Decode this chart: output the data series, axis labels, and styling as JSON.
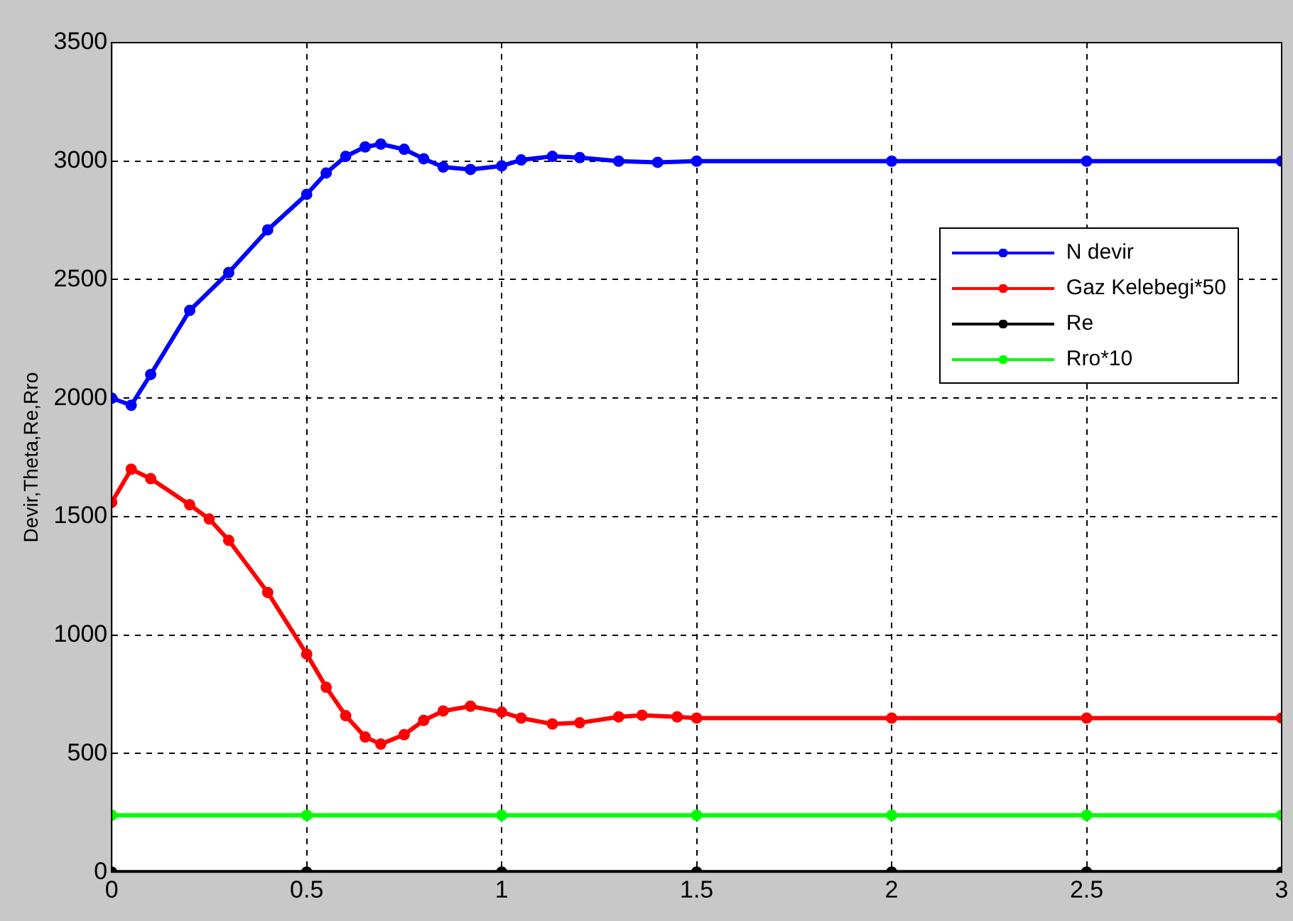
{
  "chart_data": {
    "type": "line",
    "ylabel": "Devir,Theta,Re,Rro",
    "xlim": [
      0,
      3
    ],
    "xticks": [
      0,
      0.5,
      1,
      1.5,
      2,
      2.5,
      3
    ],
    "ylim": [
      0,
      3500
    ],
    "yticks": [
      0,
      500,
      1000,
      1500,
      2000,
      2500,
      3000,
      3500
    ],
    "grid": true,
    "legend": "top right",
    "marker": "circle",
    "line_style": "solid",
    "series": [
      {
        "name": "N devir",
        "color": "#0000ff",
        "x": [
          0,
          0.05,
          0.1,
          0.2,
          0.3,
          0.4,
          0.5,
          0.55,
          0.6,
          0.65,
          0.69,
          0.75,
          0.8,
          0.85,
          0.92,
          1.0,
          1.05,
          1.13,
          1.2,
          1.3,
          1.4,
          1.5,
          2,
          2.5,
          3
        ],
        "values": [
          2000,
          1970,
          2100,
          2370,
          2530,
          2710,
          2860,
          2950,
          3020,
          3060,
          3072,
          3050,
          3010,
          2975,
          2965,
          2980,
          3005,
          3020,
          3015,
          3000,
          2995,
          3000,
          3000,
          3000,
          3000
        ]
      },
      {
        "name": "Gaz Kelebegi*50",
        "color": "#ff0000",
        "x": [
          0,
          0.05,
          0.1,
          0.2,
          0.25,
          0.3,
          0.4,
          0.5,
          0.55,
          0.6,
          0.65,
          0.69,
          0.75,
          0.8,
          0.85,
          0.92,
          1.0,
          1.05,
          1.13,
          1.2,
          1.3,
          1.36,
          1.45,
          1.5,
          2,
          2.5,
          3
        ],
        "values": [
          1560,
          1700,
          1660,
          1550,
          1490,
          1400,
          1180,
          920,
          780,
          660,
          570,
          540,
          580,
          640,
          680,
          700,
          675,
          650,
          625,
          630,
          655,
          662,
          655,
          650,
          650,
          650,
          650
        ]
      },
      {
        "name": "Re",
        "color": "#000000",
        "x": [
          0,
          0.5,
          1,
          1.5,
          2,
          2.5,
          3
        ],
        "values": [
          0,
          0,
          0,
          0,
          0,
          0,
          0
        ]
      },
      {
        "name": "Rro*10",
        "color": "#00ff00",
        "x": [
          0,
          0.5,
          1,
          1.5,
          2,
          2.5,
          3
        ],
        "values": [
          240,
          240,
          240,
          240,
          240,
          240,
          240
        ]
      }
    ]
  }
}
